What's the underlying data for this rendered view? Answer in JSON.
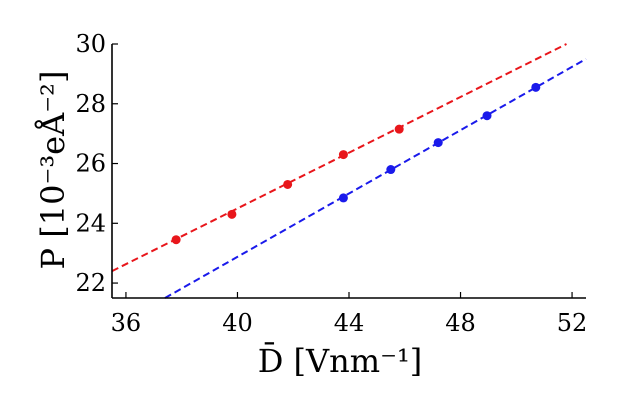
{
  "chart_data": {
    "type": "scatter",
    "xlabel": "D̄ [Vnm⁻¹]",
    "ylabel": "P [10⁻³eÅ⁻²]",
    "xlim": [
      35.5,
      52.5
    ],
    "ylim": [
      21.5,
      30.0
    ],
    "xticks": [
      36,
      40,
      44,
      48,
      52
    ],
    "yticks": [
      22,
      24,
      26,
      28,
      30
    ],
    "grid": false,
    "series": [
      {
        "color": "#e8161b",
        "x": [
          37.8,
          39.8,
          41.8,
          43.8,
          45.8
        ],
        "y": [
          23.45,
          24.3,
          25.3,
          26.3,
          27.15
        ],
        "fit": {
          "x0": 35.5,
          "y0": 22.4,
          "x1": 51.8,
          "y1": 30.0
        }
      },
      {
        "color": "#1a1aeb",
        "x": [
          43.8,
          45.5,
          47.2,
          48.95,
          50.7
        ],
        "y": [
          24.85,
          25.8,
          26.7,
          27.6,
          28.55
        ],
        "fit": {
          "x0": 37.4,
          "y0": 21.5,
          "x1": 52.5,
          "y1": 29.5
        }
      }
    ]
  }
}
